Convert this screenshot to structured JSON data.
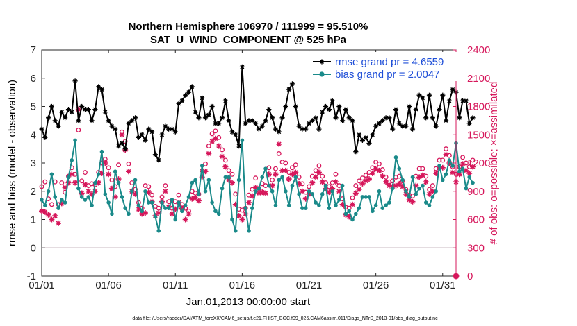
{
  "chart_data": {
    "type": "line",
    "title": "Northern Hemisphere 106970 / 111999 = 95.510%",
    "subtitle": "SAT_U_WIND_COMPONENT @ 525 hPa",
    "xlabel": "Jan.01,2013 00:00:00 start",
    "ylabel": "rmse and bias (model - observation)",
    "ylabel_right": "# of obs: o=possible; ×=assimilated",
    "x_ticks": [
      "01/01",
      "01/06",
      "01/11",
      "01/16",
      "01/21",
      "01/26",
      "01/31"
    ],
    "x_tick_days": [
      1,
      6,
      11,
      16,
      21,
      26,
      31
    ],
    "xlim": [
      1,
      32
    ],
    "ylim": [
      -1,
      7
    ],
    "y_ticks": [
      "-1",
      "0",
      "1",
      "2",
      "3",
      "4",
      "5",
      "6",
      "7"
    ],
    "ylim_right": [
      0,
      2400
    ],
    "y_ticks_right": [
      "0",
      "300",
      "600",
      "900",
      "1200",
      "1500",
      "1800",
      "2100",
      "2400"
    ],
    "legend_position": "top-right",
    "grid": false,
    "footnote": "data file: /Users/raeder/DAI/ATM_forcXX/CAM6_setup/f.e21.FHIST_BGC.f09_025.CAM6assim.011/Diags_NTrS_2013-01/obs_diag_output.nc",
    "colors": {
      "rmse": "#000000",
      "bias": "#1a8a8a",
      "obs": "#d6175b",
      "zero_line": "#c8b8c0",
      "legend_text": "#1f4fd8"
    },
    "series": [
      {
        "name": "rmse grand pr = 4.6559",
        "role": "rmse",
        "x_start": 1.0,
        "x_step": 0.25,
        "values": [
          4.2,
          3.9,
          4.6,
          5.0,
          4.5,
          4.3,
          4.8,
          4.6,
          4.9,
          4.8,
          5.9,
          4.5,
          5.0,
          4.9,
          4.9,
          4.5,
          4.9,
          5.7,
          5.6,
          4.8,
          4.5,
          4.3,
          4.2,
          3.6,
          3.7,
          3.5,
          4.4,
          4.5,
          4.6,
          3.9,
          4.0,
          3.8,
          4.2,
          4.1,
          3.3,
          3.1,
          4.0,
          4.3,
          4.2,
          4.2,
          4.1,
          5.1,
          5.2,
          5.4,
          5.5,
          5.7,
          4.8,
          4.6,
          5.3,
          4.6,
          4.7,
          5.0,
          4.4,
          4.4,
          4.6,
          5.2,
          4.5,
          4.1,
          4.0,
          3.6,
          6.4,
          4.4,
          4.5,
          4.5,
          4.4,
          4.2,
          4.3,
          4.5,
          4.9,
          4.6,
          4.2,
          4.1,
          4.6,
          5.0,
          5.6,
          5.8,
          5.0,
          4.3,
          4.2,
          4.2,
          4.4,
          4.5,
          4.6,
          4.2,
          4.8,
          5.0,
          4.9,
          5.2,
          4.6,
          5.0,
          4.5,
          4.9,
          4.6,
          4.5,
          3.4,
          4.0,
          3.8,
          3.9,
          3.7,
          4.0,
          4.3,
          4.4,
          4.5,
          4.6,
          4.6,
          4.2,
          4.9,
          4.4,
          4.3,
          4.3,
          5.0,
          4.2,
          4.9,
          5.4,
          5.3,
          4.6,
          5.4,
          4.6,
          4.3,
          4.9,
          5.4,
          4.5,
          5.2,
          5.6,
          5.5,
          4.6,
          5.2,
          5.2,
          4.4,
          4.6
        ],
        "markers": [
          "filled-asterisk"
        ]
      },
      {
        "name": "bias grand pr = 2.0047",
        "role": "bias",
        "x_start": 1.0,
        "x_step": 0.25,
        "values": [
          1.7,
          1.5,
          2.0,
          2.6,
          1.8,
          1.4,
          1.7,
          1.6,
          2.5,
          3.1,
          3.8,
          2.1,
          1.8,
          1.7,
          1.8,
          1.5,
          2.3,
          2.6,
          3.4,
          1.9,
          1.6,
          1.2,
          2.7,
          2.3,
          1.8,
          1.4,
          1.2,
          2.0,
          2.4,
          1.5,
          1.3,
          2.0,
          1.6,
          1.6,
          1.1,
          0.6,
          1.6,
          1.4,
          1.4,
          1.7,
          1.0,
          1.6,
          1.3,
          1.5,
          1.8,
          2.3,
          2.4,
          1.9,
          2.9,
          2.0,
          2.4,
          1.6,
          1.3,
          1.2,
          2.1,
          2.5,
          2.5,
          1.0,
          0.6,
          2.4,
          3.8,
          1.4,
          0.6,
          1.4,
          2.0,
          2.1,
          2.5,
          2.8,
          2.2,
          2.0,
          1.5,
          2.4,
          2.5,
          2.0,
          1.5,
          2.2,
          2.5,
          1.9,
          1.4,
          1.4,
          2.0,
          1.9,
          1.6,
          1.5,
          1.9,
          2.2,
          1.4,
          2.0,
          1.5,
          1.7,
          2.2,
          1.2,
          1.3,
          1.0,
          1.2,
          1.4,
          1.8,
          1.8,
          1.8,
          1.3,
          1.5,
          2.0,
          1.4,
          1.5,
          1.6,
          2.1,
          3.2,
          2.8,
          2.4,
          2.0,
          1.8,
          2.5,
          1.9,
          2.1,
          2.2,
          1.6,
          1.5,
          1.8,
          2.0,
          2.9,
          2.4,
          2.6,
          3.1,
          2.9,
          3.7,
          2.7,
          2.8,
          2.1,
          2.5,
          2.3
        ],
        "markers": [
          "filled-circle"
        ]
      }
    ],
    "obs_possible": {
      "marker": "open-circle",
      "x_start": 1.0,
      "x_step": 0.25,
      "values": [
        950,
        1000,
        820,
        760,
        1000,
        760,
        990,
        890,
        1060,
        1150,
        1080,
        1550,
        1010,
        1100,
        960,
        980,
        970,
        1100,
        1200,
        1240,
        1150,
        1020,
        950,
        1180,
        1530,
        1430,
        1190,
        990,
        920,
        780,
        720,
        960,
        950,
        860,
        740,
        720,
        840,
        960,
        790,
        720,
        790,
        860,
        760,
        720,
        690,
        900,
        880,
        870,
        1120,
        1190,
        1380,
        1510,
        1540,
        1470,
        1340,
        1230,
        1120,
        1080,
        870,
        710,
        700,
        720,
        860,
        920,
        1040,
        930,
        980,
        960,
        1150,
        1020,
        1140,
        1300,
        1210,
        1200,
        1100,
        1150,
        1180,
        1050,
        980,
        890,
        950,
        1060,
        1120,
        1170,
        1060,
        990,
        950,
        990,
        1080,
        960,
        820,
        730,
        720,
        830,
        960,
        1010,
        1040,
        1070,
        1100,
        1150,
        1210,
        1190,
        1130,
        1050,
        1000,
        1010,
        1050,
        1060,
        1010,
        920,
        860,
        850,
        1060,
        1140,
        1140,
        1060,
        920,
        960,
        1140,
        1230,
        1230,
        1350,
        1280,
        1160,
        1080,
        1160,
        1260,
        1200,
        1160,
        1230
      ]
    },
    "obs_assimilated": {
      "marker": "asterisk",
      "x_start": 1.0,
      "x_step": 0.25,
      "values": [
        690,
        680,
        650,
        600,
        640,
        560,
        770,
        940,
        990,
        1080,
        990,
        1770,
        880,
        970,
        900,
        870,
        900,
        990,
        1090,
        1200,
        1080,
        930,
        840,
        1030,
        1500,
        1340,
        1110,
        900,
        870,
        710,
        660,
        670,
        890,
        790,
        640,
        670,
        790,
        900,
        730,
        660,
        710,
        780,
        720,
        600,
        660,
        820,
        830,
        800,
        1050,
        1110,
        1300,
        1430,
        1460,
        1380,
        1270,
        1160,
        1020,
        990,
        760,
        640,
        600,
        660,
        780,
        850,
        940,
        880,
        890,
        880,
        1080,
        960,
        1080,
        1400,
        1120,
        1120,
        1030,
        1080,
        1100,
        980,
        900,
        820,
        870,
        990,
        1050,
        1100,
        1000,
        930,
        890,
        930,
        1000,
        900,
        760,
        650,
        630,
        760,
        880,
        920,
        980,
        1010,
        1030,
        1090,
        1140,
        1120,
        1060,
        1000,
        960,
        950,
        960,
        980,
        950,
        870,
        810,
        790,
        960,
        1050,
        1070,
        1000,
        870,
        900,
        1090,
        1150,
        1150,
        1290,
        1200,
        1100,
        1000,
        1080,
        1190,
        1120,
        1090,
        1160
      ]
    }
  }
}
